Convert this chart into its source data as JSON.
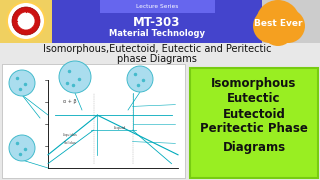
{
  "bg_color": "#e8e8e8",
  "header_bg": "#4444cc",
  "header_top_text": "Lecture Series",
  "header_main_text": "MT-303",
  "header_sub_text": "Material Technology",
  "header_top_bg": "#6666dd",
  "cloud_color": "#f5a020",
  "cloud_text": "Best Ever",
  "title_line1": "Isomorphous,Eutectoid, Eutectic and Peritectic",
  "title_line2": "phase Diagrams",
  "title_color": "#111111",
  "green_box_color": "#99ee22",
  "green_box_border": "#77cc11",
  "green_box_text": [
    "Isomorphous",
    "Eutectic",
    "Eutectoid",
    "Peritectic Phase",
    "Diagrams"
  ],
  "green_box_text_color": "#111111",
  "diag_line_color": "#00aabb",
  "diag_circle_fill": "#aaddee",
  "diag_circle_edge": "#44bbcc"
}
